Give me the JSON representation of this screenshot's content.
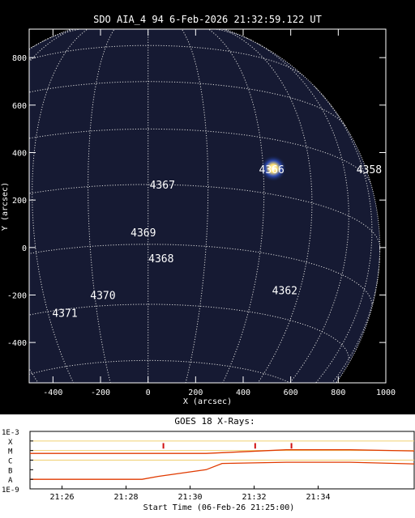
{
  "chart_data": [
    {
      "type": "scatter",
      "title": "SDO AIA_4 94  6-Feb-2026 21:32:59.122 UT",
      "xlabel": "X (arcsec)",
      "ylabel": "Y (arcsec)",
      "xlim": [
        -500,
        1000
      ],
      "ylim": [
        -570,
        920
      ],
      "x_ticks": [
        -400,
        -200,
        0,
        200,
        400,
        600,
        800,
        1000
      ],
      "y_ticks": [
        800,
        600,
        400,
        200,
        0,
        -200,
        -400
      ],
      "grid": true,
      "points": [
        {
          "label": "4366",
          "x": 520,
          "y": 330
        },
        {
          "label": "4358",
          "x": 930,
          "y": 330
        },
        {
          "label": "4367",
          "x": 60,
          "y": 265
        },
        {
          "label": "4369",
          "x": -20,
          "y": 65
        },
        {
          "label": "4368",
          "x": 55,
          "y": -45
        },
        {
          "label": "4362",
          "x": 575,
          "y": -180
        },
        {
          "label": "4370",
          "x": -190,
          "y": -200
        },
        {
          "label": "4371",
          "x": -350,
          "y": -275
        }
      ]
    },
    {
      "type": "line",
      "title": "GOES 18 X-Rays:",
      "xlabel": "Start Time (06-Feb-26 21:25:00)",
      "x_ticks": [
        "21:26",
        "21:28",
        "21:30",
        "21:32",
        "21:34"
      ],
      "y_ticks": [
        "1E-3",
        "X",
        "M",
        "C",
        "B",
        "A",
        "1E-9"
      ],
      "xlim": [
        "21:25",
        "21:37"
      ],
      "ylim": [
        1e-09,
        0.001
      ],
      "log_scale": true,
      "series": [
        {
          "x": [
            "21:25:00",
            "21:30:30",
            "21:31:00",
            "21:33:00",
            "21:35:00",
            "21:37:00"
          ],
          "values": [
            5e-06,
            5e-06,
            6e-06,
            1.2e-05,
            1.2e-05,
            9e-06
          ]
        },
        {
          "x": [
            "21:25:00",
            "21:28:30",
            "21:29:00",
            "21:30:30",
            "21:31:00",
            "21:33:00",
            "21:35:00",
            "21:37:00"
          ],
          "values": [
            1e-08,
            1e-08,
            2e-08,
            1e-07,
            4.5e-07,
            6e-07,
            6e-07,
            4e-07
          ]
        }
      ],
      "markers": [
        "21:29:10",
        "21:32:02",
        "21:33:10"
      ],
      "colors": {
        "curve": "#e03a00",
        "marker": "#d01010"
      }
    }
  ]
}
